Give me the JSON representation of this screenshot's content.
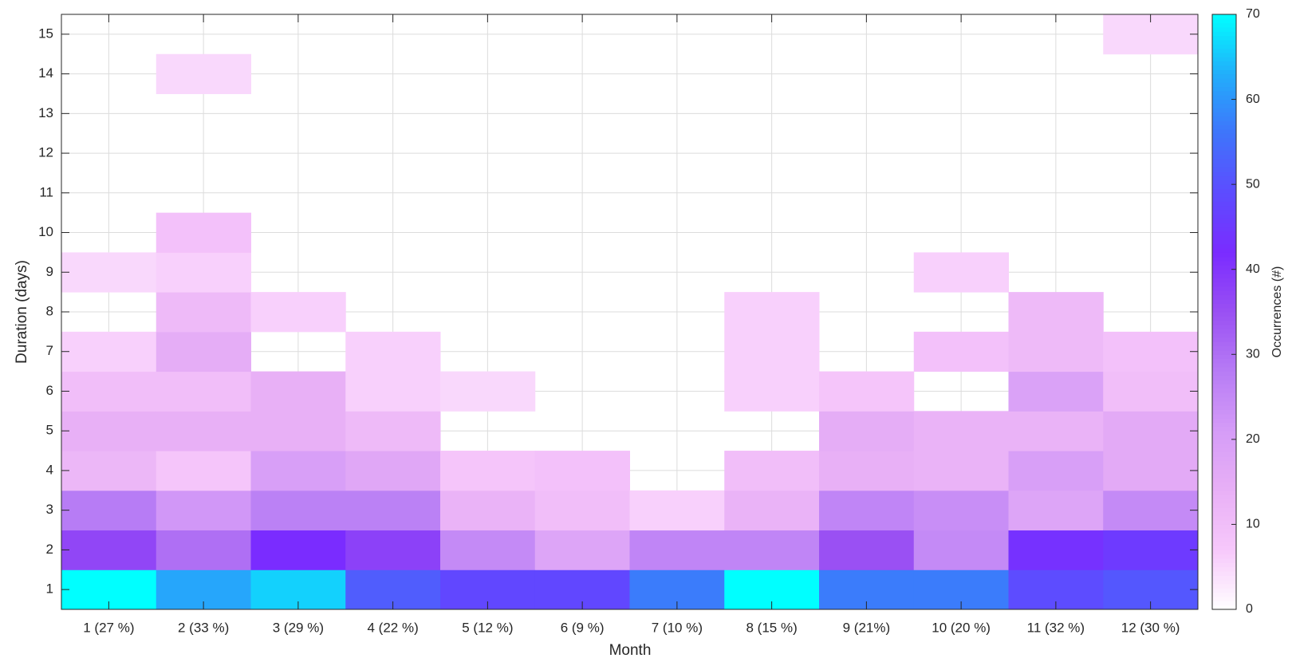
{
  "chart_data": {
    "type": "heatmap",
    "x_label": "Month",
    "y_label": "Duration (days)",
    "colorbar_label": "Occurrences (#)",
    "categories": [
      "1 (27 %)",
      "2 (33 %)",
      "3 (29 %)",
      "4 (22 %)",
      "5 (12 %)",
      "6 (9 %)",
      "7 (10 %)",
      "8 (15 %)",
      "9 (21%)",
      "10 (20 %)",
      "11 (32 %)",
      "12 (30 %)"
    ],
    "y": [
      1,
      2,
      3,
      4,
      5,
      6,
      7,
      8,
      9,
      10,
      11,
      12,
      13,
      14,
      15
    ],
    "ylim": [
      0.5,
      15.5
    ],
    "yticks": [
      1,
      2,
      3,
      4,
      5,
      6,
      7,
      8,
      9,
      10,
      11,
      12,
      13,
      14,
      15
    ],
    "values": [
      [
        70,
        37,
        28,
        12,
        14,
        10,
        6,
        0,
        5,
        0,
        0,
        0,
        0,
        0,
        0
      ],
      [
        62,
        30,
        22,
        8,
        14,
        10,
        15,
        11,
        6,
        9,
        0,
        0,
        0,
        5,
        0
      ],
      [
        66,
        42,
        27,
        20,
        14,
        14,
        0,
        6,
        0,
        0,
        0,
        0,
        0,
        0,
        0
      ],
      [
        52,
        38,
        27,
        17,
        11,
        6,
        6,
        0,
        0,
        0,
        0,
        0,
        0,
        0,
        0
      ],
      [
        48,
        25,
        13,
        8,
        0,
        5,
        0,
        0,
        0,
        0,
        0,
        0,
        0,
        0,
        0
      ],
      [
        48,
        18,
        10,
        9,
        0,
        0,
        0,
        0,
        0,
        0,
        0,
        0,
        0,
        0,
        0
      ],
      [
        57,
        26,
        6,
        0,
        0,
        0,
        0,
        0,
        0,
        0,
        0,
        0,
        0,
        0,
        0
      ],
      [
        70,
        26,
        13,
        10,
        0,
        6,
        6,
        6,
        0,
        0,
        0,
        0,
        0,
        0,
        0
      ],
      [
        57,
        35,
        26,
        14,
        15,
        8,
        0,
        0,
        0,
        0,
        0,
        0,
        0,
        0,
        0
      ],
      [
        57,
        25,
        24,
        13,
        13,
        0,
        9,
        0,
        6,
        0,
        0,
        0,
        0,
        0,
        0
      ],
      [
        49,
        43,
        18,
        20,
        13,
        19,
        11,
        11,
        0,
        0,
        0,
        0,
        0,
        0,
        0
      ],
      [
        51,
        45,
        25,
        16,
        16,
        10,
        9,
        0,
        0,
        0,
        0,
        0,
        0,
        0,
        5
      ]
    ],
    "clim": [
      0,
      70
    ],
    "cticks": [
      0,
      10,
      20,
      30,
      40,
      50,
      60,
      70
    ],
    "colormap": [
      "#ffffff",
      "#f7c8fb",
      "#e8b0f6",
      "#d59cf7",
      "#b77cf5",
      "#9a50f3",
      "#7a2cff",
      "#5d4cff",
      "#3f74fb",
      "#22aefb",
      "#00ffff"
    ],
    "grid": true
  }
}
